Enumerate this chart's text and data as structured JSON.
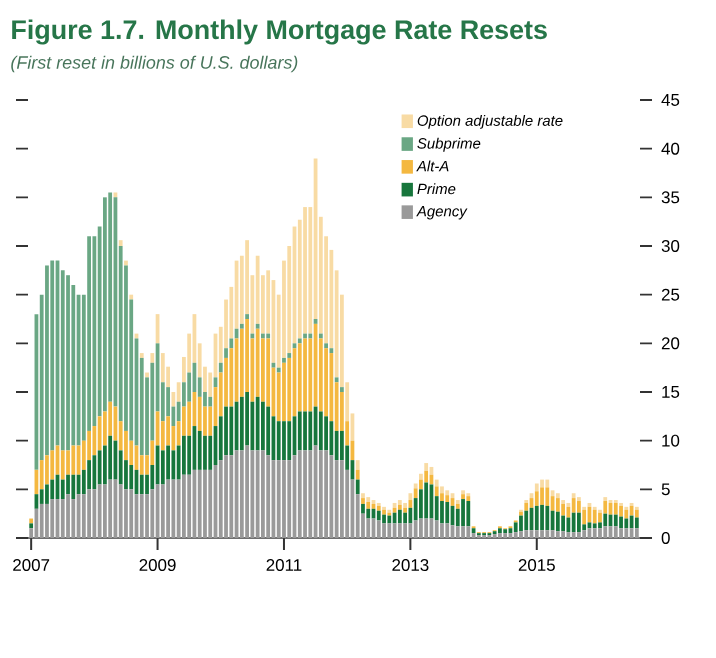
{
  "chart_data": {
    "type": "bar",
    "stacked": true,
    "title": "Figure 1.7. Monthly Mortgage Rate Resets",
    "subtitle": "(First reset in billions of U.S. dollars)",
    "x": [
      "2007-01",
      "2007-02",
      "2007-03",
      "2007-04",
      "2007-05",
      "2007-06",
      "2007-07",
      "2007-08",
      "2007-09",
      "2007-10",
      "2007-11",
      "2007-12",
      "2008-01",
      "2008-02",
      "2008-03",
      "2008-04",
      "2008-05",
      "2008-06",
      "2008-07",
      "2008-08",
      "2008-09",
      "2008-10",
      "2008-11",
      "2008-12",
      "2009-01",
      "2009-02",
      "2009-03",
      "2009-04",
      "2009-05",
      "2009-06",
      "2009-07",
      "2009-08",
      "2009-09",
      "2009-10",
      "2009-11",
      "2009-12",
      "2010-01",
      "2010-02",
      "2010-03",
      "2010-04",
      "2010-05",
      "2010-06",
      "2010-07",
      "2010-08",
      "2010-09",
      "2010-10",
      "2010-11",
      "2010-12",
      "2011-01",
      "2011-02",
      "2011-03",
      "2011-04",
      "2011-05",
      "2011-06",
      "2011-07",
      "2011-08",
      "2011-09",
      "2011-10",
      "2011-11",
      "2011-12",
      "2012-01",
      "2012-02",
      "2012-03",
      "2012-04",
      "2012-05",
      "2012-06",
      "2012-07",
      "2012-08",
      "2012-09",
      "2012-10",
      "2012-11",
      "2012-12",
      "2013-01",
      "2013-02",
      "2013-03",
      "2013-04",
      "2013-05",
      "2013-06",
      "2013-07",
      "2013-08",
      "2013-09",
      "2013-10",
      "2013-11",
      "2013-12",
      "2014-01",
      "2014-02",
      "2014-03",
      "2014-04",
      "2014-05",
      "2014-06",
      "2014-07",
      "2014-08",
      "2014-09",
      "2014-10",
      "2014-11",
      "2014-12",
      "2015-01",
      "2015-02",
      "2015-03",
      "2015-04",
      "2015-05",
      "2015-06",
      "2015-07",
      "2015-08",
      "2015-09",
      "2015-10",
      "2015-11",
      "2015-12",
      "2016-01",
      "2016-02",
      "2016-03",
      "2016-04",
      "2016-05",
      "2016-06",
      "2016-07",
      "2016-08"
    ],
    "series": [
      {
        "name": "Agency",
        "color": "#9a9a9a",
        "values": [
          1,
          3,
          3.5,
          3.5,
          4,
          4,
          4,
          4.5,
          4,
          4.5,
          4.5,
          5,
          5,
          5.5,
          5.5,
          6,
          6,
          5.5,
          5,
          5,
          4.5,
          4.5,
          4.5,
          5,
          5.5,
          5.5,
          6,
          6,
          6,
          6.5,
          6.5,
          7,
          7,
          7,
          7,
          7.5,
          8,
          8.5,
          8.5,
          9,
          9,
          9.5,
          9,
          9,
          9,
          8.5,
          8,
          8,
          8,
          8,
          8.5,
          9,
          9,
          9,
          9.5,
          9,
          9,
          8.5,
          8,
          8,
          7,
          6,
          4.5,
          2.5,
          2,
          2,
          1.8,
          1.5,
          1.5,
          1.5,
          1.5,
          1.5,
          1.5,
          1.8,
          2,
          2,
          2,
          1.8,
          1.5,
          1.5,
          1.3,
          1.2,
          1.2,
          1.2,
          0.5,
          0.3,
          0.3,
          0.3,
          0.4,
          0.5,
          0.5,
          0.5,
          0.6,
          0.7,
          0.8,
          0.8,
          0.8,
          0.8,
          0.8,
          0.8,
          0.7,
          0.7,
          0.6,
          0.6,
          0.6,
          0.8,
          1,
          1,
          1,
          1.2,
          1.2,
          1.2,
          1,
          1,
          1,
          1
        ]
      },
      {
        "name": "Prime",
        "color": "#17763c",
        "values": [
          0.5,
          1.5,
          1.5,
          2,
          2,
          2.5,
          2,
          2,
          2.5,
          2,
          2.5,
          3,
          3.5,
          3.5,
          4,
          4.5,
          4,
          3.5,
          3,
          2.5,
          2.5,
          2,
          2,
          2.5,
          4,
          3.5,
          3.5,
          3,
          3.5,
          4,
          4,
          4.5,
          4,
          3.5,
          3.5,
          4,
          4.5,
          5,
          5,
          5,
          5.5,
          5.5,
          5,
          5.5,
          5,
          5,
          4.5,
          4,
          4,
          4,
          4,
          4,
          4,
          4,
          4,
          4,
          3.5,
          3.5,
          3,
          3,
          2.5,
          2,
          1.5,
          1,
          1,
          1,
          1,
          0.9,
          0.8,
          1.1,
          1.4,
          1.1,
          1.6,
          2.3,
          3,
          3.7,
          3.5,
          2.5,
          2.3,
          2.2,
          2,
          1.8,
          2.8,
          2.6,
          0.5,
          0.2,
          0.2,
          0.2,
          0.3,
          0.5,
          0.4,
          0.5,
          1,
          1.6,
          2,
          2.3,
          2.5,
          2.6,
          2.5,
          2,
          2,
          1.6,
          1.5,
          2,
          2,
          0.6,
          0.6,
          0.5,
          0.6,
          1.3,
          1.2,
          1.2,
          1.2,
          1,
          1.3,
          1.1
        ]
      },
      {
        "name": "Alt-A",
        "color": "#f4b840",
        "values": [
          0.5,
          2.5,
          3,
          3,
          3,
          3,
          3,
          2.5,
          3,
          3,
          3,
          3,
          3,
          3.5,
          3.5,
          3.5,
          3.5,
          3,
          3,
          2.5,
          2.5,
          2,
          2,
          2.5,
          3.5,
          3,
          3,
          2.5,
          2.5,
          3,
          3.5,
          3.5,
          3.5,
          3,
          3,
          4,
          4.5,
          5,
          6,
          6.5,
          7,
          7.5,
          6.5,
          7,
          6.5,
          7,
          5,
          5,
          6,
          6.5,
          7,
          7,
          7.5,
          7.5,
          8.5,
          7.5,
          7,
          7,
          5,
          4,
          2.5,
          2,
          1,
          0.6,
          0.7,
          0.5,
          0.5,
          0.5,
          0.3,
          0.5,
          0.5,
          0.5,
          0.8,
          1,
          1,
          1.2,
          1,
          1,
          0.8,
          0.7,
          0.8,
          0.5,
          0.5,
          0.5,
          0.2,
          0.1,
          0.1,
          0.1,
          0.1,
          0.2,
          0.1,
          0.2,
          0.2,
          0.4,
          0.8,
          1,
          1.5,
          1.8,
          1.9,
          1.5,
          1.4,
          1.2,
          1.1,
          1.5,
          1.2,
          1.5,
          1.6,
          1.4,
          1,
          1.3,
          1.2,
          1.2,
          1.1,
          0.9,
          1,
          0.8
        ]
      },
      {
        "name": "Subprime",
        "color": "#6aa784",
        "values": [
          0,
          16,
          17,
          19.5,
          19.5,
          19,
          18.5,
          18,
          16.5,
          15.5,
          15,
          20,
          19.5,
          19.5,
          22,
          21.5,
          21.5,
          18,
          17,
          14.5,
          11,
          10,
          8,
          8,
          7,
          4,
          3,
          2,
          2,
          2.5,
          3,
          3,
          2,
          1.5,
          1,
          1,
          1,
          1,
          1,
          1,
          0.5,
          0.5,
          0.5,
          0.5,
          0.5,
          0.5,
          0.5,
          0.5,
          0.5,
          0.5,
          0.5,
          0.5,
          0.5,
          0.5,
          0.5,
          0.5,
          0.5,
          0.5,
          0.5,
          0.5,
          0,
          0,
          0,
          0,
          0,
          0,
          0,
          0,
          0,
          0,
          0,
          0,
          0,
          0,
          0,
          0,
          0,
          0,
          0,
          0,
          0,
          0,
          0,
          0,
          0,
          0,
          0,
          0,
          0,
          0,
          0,
          0,
          0,
          0,
          0,
          0,
          0,
          0,
          0,
          0,
          0,
          0,
          0,
          0,
          0,
          0,
          0,
          0,
          0,
          0,
          0,
          0,
          0,
          0,
          0,
          0
        ]
      },
      {
        "name": "Option adjustable rate",
        "color": "#f8dba4",
        "values": [
          0,
          0,
          0,
          0,
          0,
          0,
          0,
          0,
          0,
          0,
          0,
          0,
          0,
          0,
          0,
          0,
          0.5,
          0.6,
          0.5,
          0.5,
          0.5,
          0.5,
          0.5,
          1,
          3,
          3,
          2.1,
          1.5,
          2,
          2.6,
          4,
          5,
          3.5,
          2.6,
          2.5,
          4.5,
          3.7,
          5,
          5.3,
          7,
          7,
          7.6,
          6,
          7,
          6,
          6.5,
          8.5,
          7.5,
          10,
          11,
          12,
          12.2,
          13,
          13,
          16.5,
          12,
          11,
          10.1,
          11,
          9.5,
          4,
          2.8,
          1,
          0.5,
          0.5,
          0.4,
          0.3,
          0.3,
          0.3,
          0.5,
          0.5,
          0.5,
          0.7,
          0.5,
          0.6,
          0.8,
          0.8,
          0.7,
          0.7,
          0.5,
          0.5,
          0.4,
          0.4,
          0.3,
          0,
          0,
          0,
          0,
          0,
          0,
          0,
          0,
          0,
          0.2,
          0.3,
          0.5,
          0.8,
          0.8,
          0.8,
          0.6,
          0.5,
          0.4,
          0.4,
          0.5,
          0.4,
          0.3,
          0.4,
          0.3,
          0.3,
          0.4,
          0.3,
          0.3,
          0.3,
          0.3,
          0.3,
          0.3
        ]
      }
    ],
    "xlim": [
      "2007-01",
      "2016-08"
    ],
    "xticks": [
      {
        "value": "2007-01",
        "label": "2007"
      },
      {
        "value": "2009-01",
        "label": "2009"
      },
      {
        "value": "2011-01",
        "label": "2011"
      },
      {
        "value": "2013-01",
        "label": "2013"
      },
      {
        "value": "2015-01",
        "label": "2015"
      }
    ],
    "ylim": [
      0,
      45
    ],
    "yticks": [
      0,
      5,
      10,
      15,
      20,
      25,
      30,
      35,
      40,
      45
    ],
    "legend": "top right"
  }
}
